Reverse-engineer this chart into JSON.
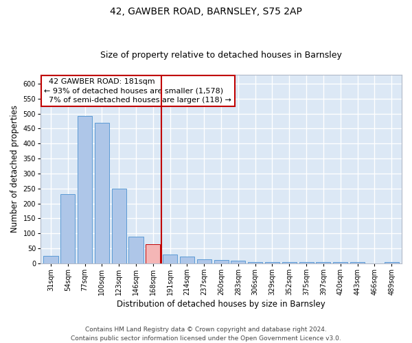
{
  "title": "42, GAWBER ROAD, BARNSLEY, S75 2AP",
  "subtitle": "Size of property relative to detached houses in Barnsley",
  "xlabel": "Distribution of detached houses by size in Barnsley",
  "ylabel": "Number of detached properties",
  "categories": [
    "31sqm",
    "54sqm",
    "77sqm",
    "100sqm",
    "123sqm",
    "146sqm",
    "168sqm",
    "191sqm",
    "214sqm",
    "237sqm",
    "260sqm",
    "283sqm",
    "306sqm",
    "329sqm",
    "352sqm",
    "375sqm",
    "397sqm",
    "420sqm",
    "443sqm",
    "466sqm",
    "489sqm"
  ],
  "values": [
    25,
    232,
    492,
    470,
    250,
    88,
    63,
    30,
    23,
    13,
    12,
    8,
    3,
    3,
    3,
    3,
    5,
    3,
    3,
    0,
    5
  ],
  "bar_color": "#aec6e8",
  "bar_edge_color": "#5b9bd5",
  "highlight_index": 6,
  "highlight_bar_color": "#f4b6b6",
  "highlight_bar_edge_color": "#c00000",
  "vline_color": "#c00000",
  "annotation_text": "  42 GAWBER ROAD: 181sqm\n← 93% of detached houses are smaller (1,578)\n  7% of semi-detached houses are larger (118) →",
  "annotation_box_color": "#ffffff",
  "annotation_box_edge_color": "#c00000",
  "ylim": [
    0,
    630
  ],
  "yticks": [
    0,
    50,
    100,
    150,
    200,
    250,
    300,
    350,
    400,
    450,
    500,
    550,
    600
  ],
  "bg_color": "#dce8f5",
  "grid_color": "#ffffff",
  "footer": "Contains HM Land Registry data © Crown copyright and database right 2024.\nContains public sector information licensed under the Open Government Licence v3.0.",
  "title_fontsize": 10,
  "subtitle_fontsize": 9,
  "xlabel_fontsize": 8.5,
  "ylabel_fontsize": 8.5,
  "tick_fontsize": 7,
  "annotation_fontsize": 8,
  "footer_fontsize": 6.5
}
